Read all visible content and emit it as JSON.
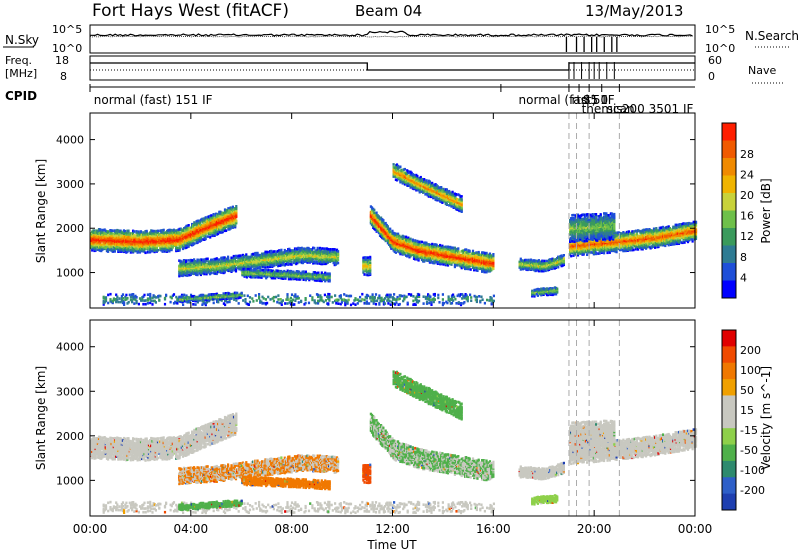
{
  "header": {
    "title": "Fort Hays West (fitACF)",
    "beam": "Beam 04",
    "date": "13/May/2013"
  },
  "panels": {
    "nsky": {
      "label": "N.Sky",
      "tick_top": "10^5",
      "tick_bottom": "10^0",
      "right_label": "N.Search",
      "right_tick_top": "10^5",
      "right_tick_bottom": "10^0"
    },
    "freq": {
      "label_line1": "Freq.",
      "label_line2": "[MHz]",
      "tick_top": "18",
      "tick_bottom": "8",
      "right_label": "Nave",
      "right_tick_top": "60",
      "right_tick_bottom": "0"
    },
    "cpid": {
      "label": "CPID",
      "programs": [
        {
          "text": "normal (fast) 151 IF",
          "hour": 0.15,
          "row": 0
        },
        {
          "text": "normal (fast) 1",
          "hour": 17.0,
          "row": 0
        },
        {
          "text": "rtd",
          "hour": 19.1,
          "row": 0
        },
        {
          "text": "S5",
          "hour": 19.55,
          "row": 0
        },
        {
          "text": "50",
          "hour": 19.95,
          "row": 0
        },
        {
          "text": "IF",
          "hour": 20.4,
          "row": 0
        },
        {
          "text": "themis",
          "hour": 19.5,
          "row": 1
        },
        {
          "text": "scan",
          "hour": 20.5,
          "row": 1
        },
        {
          "text": "200 3501 IF",
          "hour": 21.1,
          "row": 1
        }
      ]
    }
  },
  "chart_data": [
    {
      "type": "heatmap",
      "name": "power",
      "ylabel": "Slant Range [km]",
      "xlim": [
        0,
        24
      ],
      "ylim": [
        200,
        4600
      ],
      "yticks": [
        1000,
        2000,
        3000,
        4000
      ],
      "colorbar": {
        "label": "Power [dB]",
        "ticks": [
          "4",
          "8",
          "12",
          "16",
          "20",
          "24",
          "28"
        ],
        "colors": [
          "#0000ff",
          "#1e4fd8",
          "#2e7b93",
          "#3a9a5c",
          "#6ec04a",
          "#c8d23a",
          "#f0b400",
          "#f08a00",
          "#f05a00",
          "#ff1e00"
        ]
      }
    },
    {
      "type": "heatmap",
      "name": "velocity",
      "ylabel": "Slant Range [km]",
      "xlabel": "Time UT",
      "xlim": [
        0,
        24
      ],
      "ylim": [
        200,
        4600
      ],
      "yticks": [
        1000,
        2000,
        3000,
        4000
      ],
      "xticks": [
        "00:00",
        "04:00",
        "08:00",
        "12:00",
        "16:00",
        "20:00",
        "00:00"
      ],
      "colorbar": {
        "label": "Velocity [m s^-1]",
        "ticks": [
          "200",
          "100",
          "50",
          "15",
          "-15",
          "-50",
          "-100",
          "-200"
        ],
        "colors": [
          "#1e3fb0",
          "#2e5fc8",
          "#2e8a6e",
          "#4fb04a",
          "#8ed04a",
          "#c8c8c0",
          "#c8c8c0",
          "#f0a000",
          "#f07800",
          "#f04a00",
          "#e00000"
        ]
      }
    }
  ]
}
